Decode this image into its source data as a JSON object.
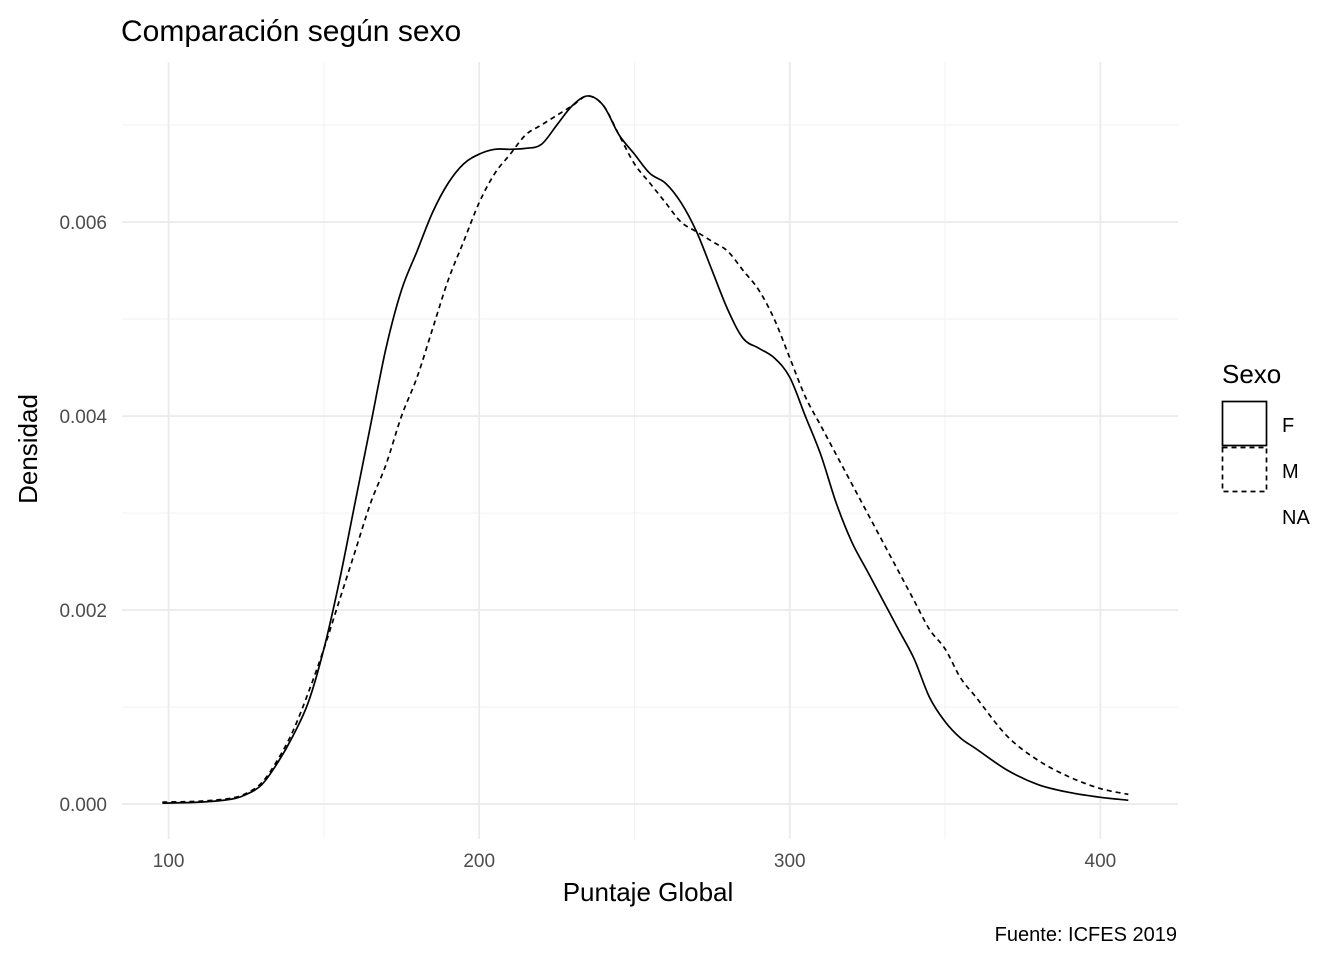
{
  "chart_data": {
    "type": "line",
    "title": "Comparación según sexo",
    "xlabel": "Puntaje Global",
    "ylabel": "Densidad",
    "caption": "Fuente: ICFES 2019",
    "xlim": [
      85,
      425
    ],
    "ylim": [
      -0.00036,
      0.00765
    ],
    "x_ticks": [
      100,
      200,
      300,
      400
    ],
    "x_tick_labels": [
      "100",
      "200",
      "300",
      "400"
    ],
    "y_ticks": [
      0,
      0.002,
      0.004,
      0.006
    ],
    "y_tick_labels": [
      "0.000",
      "0.002",
      "0.004",
      "0.006"
    ],
    "grid": true,
    "legend": {
      "title": "Sexo",
      "position": "right",
      "entries": [
        {
          "label": "F",
          "linetype": "solid"
        },
        {
          "label": "M",
          "linetype": "dashed"
        },
        {
          "label": "NA",
          "linetype": "blank"
        }
      ]
    },
    "series": [
      {
        "name": "F",
        "linetype": "solid",
        "x": [
          98,
          110,
          120,
          125,
          130,
          135,
          140,
          145,
          150,
          155,
          160,
          165,
          170,
          175,
          180,
          185,
          190,
          195,
          200,
          205,
          210,
          215,
          220,
          225,
          230,
          235,
          240,
          245,
          250,
          255,
          260,
          265,
          270,
          275,
          280,
          285,
          290,
          295,
          300,
          305,
          310,
          315,
          320,
          325,
          330,
          335,
          340,
          345,
          350,
          355,
          360,
          370,
          380,
          390,
          400,
          409
        ],
        "y": [
          1e-05,
          2e-05,
          5e-05,
          0.0001,
          0.0002,
          0.00042,
          0.0007,
          0.00105,
          0.0016,
          0.0023,
          0.0031,
          0.0039,
          0.0047,
          0.0053,
          0.0057,
          0.0061,
          0.0064,
          0.0066,
          0.0067,
          0.00675,
          0.00675,
          0.00676,
          0.0068,
          0.007,
          0.0072,
          0.0073,
          0.0072,
          0.0069,
          0.0067,
          0.0065,
          0.0064,
          0.0062,
          0.0059,
          0.0055,
          0.0051,
          0.0048,
          0.0047,
          0.0046,
          0.0044,
          0.004,
          0.0036,
          0.0031,
          0.0027,
          0.0024,
          0.0021,
          0.0018,
          0.0015,
          0.0011,
          0.00085,
          0.00068,
          0.00057,
          0.00035,
          0.0002,
          0.00012,
          7e-05,
          4e-05
        ]
      },
      {
        "name": "M",
        "linetype": "dashed",
        "x": [
          98,
          110,
          120,
          125,
          130,
          135,
          140,
          145,
          150,
          155,
          160,
          165,
          170,
          175,
          180,
          185,
          190,
          195,
          200,
          205,
          210,
          215,
          220,
          225,
          230,
          235,
          240,
          245,
          250,
          255,
          260,
          265,
          270,
          275,
          280,
          285,
          290,
          295,
          300,
          305,
          310,
          315,
          320,
          325,
          330,
          335,
          340,
          345,
          350,
          355,
          360,
          370,
          380,
          390,
          400,
          409
        ],
        "y": [
          2e-05,
          3e-05,
          6e-05,
          0.00011,
          0.00022,
          0.00045,
          0.00075,
          0.00115,
          0.0016,
          0.0021,
          0.0026,
          0.0031,
          0.0035,
          0.004,
          0.0044,
          0.0049,
          0.0054,
          0.0058,
          0.0062,
          0.0065,
          0.0067,
          0.0069,
          0.007,
          0.0071,
          0.0072,
          0.0073,
          0.0072,
          0.0069,
          0.0066,
          0.0064,
          0.0062,
          0.006,
          0.0059,
          0.0058,
          0.0057,
          0.0055,
          0.0053,
          0.005,
          0.0046,
          0.0042,
          0.0039,
          0.0036,
          0.0033,
          0.003,
          0.0027,
          0.0024,
          0.0021,
          0.0018,
          0.0016,
          0.0013,
          0.0011,
          0.0007,
          0.00045,
          0.00028,
          0.00016,
          0.0001
        ]
      }
    ]
  }
}
